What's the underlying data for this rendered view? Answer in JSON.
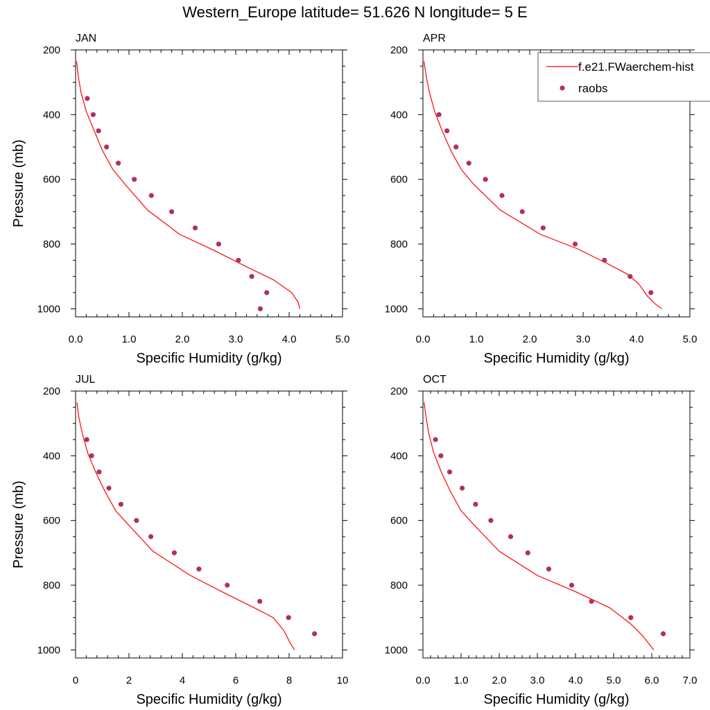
{
  "page_title": "Western_Europe  latitude= 51.626 N longitude= 5 E",
  "colors": {
    "model_line": "#ff0000",
    "obs_marker": "#b03060",
    "axis": "#000000"
  },
  "chart_data": [
    {
      "type": "line",
      "title": "JAN",
      "xlabel": "Specific Humidity (g/kg)",
      "ylabel": "Pressure (mb)",
      "xlim": [
        0,
        5
      ],
      "ylim": [
        200,
        1025
      ],
      "y_reversed": true,
      "xticks": [
        "0.0",
        "1.0",
        "2.0",
        "3.0",
        "4.0",
        "5.0"
      ],
      "yticks": [
        "200",
        "400",
        "600",
        "800",
        "1000"
      ],
      "legend": null,
      "series": [
        {
          "name": "f.e21.FWaerchem-hist",
          "kind": "line",
          "points": [
            [
              0.02,
              235
            ],
            [
              0.05,
              280
            ],
            [
              0.1,
              330
            ],
            [
              0.2,
              390
            ],
            [
              0.35,
              450
            ],
            [
              0.5,
              510
            ],
            [
              0.7,
              570
            ],
            [
              0.95,
              620
            ],
            [
              1.35,
              695
            ],
            [
              1.95,
              770
            ],
            [
              2.6,
              820
            ],
            [
              3.2,
              870
            ],
            [
              3.7,
              910
            ],
            [
              4.05,
              950
            ],
            [
              4.17,
              980
            ],
            [
              4.2,
              1000
            ]
          ]
        },
        {
          "name": "raobs",
          "kind": "scatter",
          "points": [
            [
              0.22,
              350
            ],
            [
              0.33,
              400
            ],
            [
              0.43,
              450
            ],
            [
              0.58,
              500
            ],
            [
              0.8,
              550
            ],
            [
              1.1,
              600
            ],
            [
              1.42,
              650
            ],
            [
              1.8,
              700
            ],
            [
              2.24,
              750
            ],
            [
              2.68,
              800
            ],
            [
              3.05,
              850
            ],
            [
              3.3,
              900
            ],
            [
              3.58,
              950
            ],
            [
              3.46,
              1000
            ]
          ]
        }
      ]
    },
    {
      "type": "line",
      "title": "APR",
      "xlabel": "Specific Humidity (g/kg)",
      "ylabel": "",
      "xlim": [
        0,
        5
      ],
      "ylim": [
        200,
        1025
      ],
      "y_reversed": true,
      "xticks": [
        "0.0",
        "1.0",
        "2.0",
        "3.0",
        "4.0",
        "5.0"
      ],
      "yticks": [
        "200",
        "400",
        "600",
        "800",
        "1000"
      ],
      "legend": {
        "placement": "top-right",
        "entries": [
          "f.e21.FWaerchem-hist",
          "raobs"
        ]
      },
      "series": [
        {
          "name": "f.e21.FWaerchem-hist",
          "kind": "line",
          "points": [
            [
              0.02,
              235
            ],
            [
              0.06,
              280
            ],
            [
              0.12,
              330
            ],
            [
              0.22,
              390
            ],
            [
              0.36,
              450
            ],
            [
              0.52,
              510
            ],
            [
              0.72,
              570
            ],
            [
              0.95,
              615
            ],
            [
              1.45,
              695
            ],
            [
              2.2,
              770
            ],
            [
              2.9,
              815
            ],
            [
              3.45,
              860
            ],
            [
              3.85,
              895
            ],
            [
              4.05,
              925
            ],
            [
              4.2,
              960
            ],
            [
              4.35,
              985
            ],
            [
              4.47,
              1000
            ]
          ]
        },
        {
          "name": "raobs",
          "kind": "scatter",
          "points": [
            [
              0.3,
              400
            ],
            [
              0.45,
              450
            ],
            [
              0.62,
              500
            ],
            [
              0.86,
              550
            ],
            [
              1.17,
              600
            ],
            [
              1.48,
              650
            ],
            [
              1.86,
              700
            ],
            [
              2.25,
              750
            ],
            [
              2.85,
              800
            ],
            [
              3.4,
              850
            ],
            [
              3.88,
              900
            ],
            [
              4.27,
              950
            ]
          ]
        }
      ]
    },
    {
      "type": "line",
      "title": "JUL",
      "xlabel": "Specific Humidity (g/kg)",
      "ylabel": "Pressure (mb)",
      "xlim": [
        0,
        10
      ],
      "ylim": [
        200,
        1025
      ],
      "y_reversed": true,
      "xticks": [
        "0",
        "2",
        "4",
        "6",
        "8",
        "10"
      ],
      "yticks": [
        "200",
        "400",
        "600",
        "800",
        "1000"
      ],
      "legend": null,
      "series": [
        {
          "name": "f.e21.FWaerchem-hist",
          "kind": "line",
          "points": [
            [
              0.05,
              235
            ],
            [
              0.12,
              280
            ],
            [
              0.25,
              330
            ],
            [
              0.45,
              390
            ],
            [
              0.75,
              450
            ],
            [
              1.1,
              510
            ],
            [
              1.5,
              570
            ],
            [
              2.0,
              615
            ],
            [
              2.9,
              695
            ],
            [
              4.3,
              770
            ],
            [
              5.6,
              825
            ],
            [
              6.7,
              870
            ],
            [
              7.4,
              900
            ],
            [
              7.8,
              940
            ],
            [
              8.05,
              980
            ],
            [
              8.2,
              1000
            ]
          ]
        },
        {
          "name": "raobs",
          "kind": "scatter",
          "points": [
            [
              0.42,
              350
            ],
            [
              0.6,
              400
            ],
            [
              0.88,
              450
            ],
            [
              1.25,
              500
            ],
            [
              1.7,
              550
            ],
            [
              2.28,
              600
            ],
            [
              2.82,
              650
            ],
            [
              3.7,
              700
            ],
            [
              4.62,
              750
            ],
            [
              5.68,
              800
            ],
            [
              6.9,
              850
            ],
            [
              7.98,
              900
            ],
            [
              8.95,
              950
            ]
          ]
        }
      ]
    },
    {
      "type": "line",
      "title": "OCT",
      "xlabel": "Specific Humidity (g/kg)",
      "ylabel": "",
      "xlim": [
        0,
        7
      ],
      "ylim": [
        200,
        1025
      ],
      "y_reversed": true,
      "xticks": [
        "0.0",
        "1.0",
        "2.0",
        "3.0",
        "4.0",
        "5.0",
        "6.0",
        "7.0"
      ],
      "yticks": [
        "200",
        "400",
        "600",
        "800",
        "1000"
      ],
      "legend": null,
      "series": [
        {
          "name": "f.e21.FWaerchem-hist",
          "kind": "line",
          "points": [
            [
              0.03,
              235
            ],
            [
              0.08,
              280
            ],
            [
              0.15,
              330
            ],
            [
              0.28,
              390
            ],
            [
              0.48,
              450
            ],
            [
              0.72,
              510
            ],
            [
              1.0,
              570
            ],
            [
              1.35,
              615
            ],
            [
              2.0,
              695
            ],
            [
              3.0,
              770
            ],
            [
              4.0,
              820
            ],
            [
              4.9,
              870
            ],
            [
              5.45,
              920
            ],
            [
              5.75,
              955
            ],
            [
              5.95,
              985
            ],
            [
              6.05,
              1000
            ]
          ]
        },
        {
          "name": "raobs",
          "kind": "scatter",
          "points": [
            [
              0.33,
              350
            ],
            [
              0.47,
              400
            ],
            [
              0.7,
              450
            ],
            [
              1.03,
              500
            ],
            [
              1.38,
              550
            ],
            [
              1.78,
              600
            ],
            [
              2.3,
              650
            ],
            [
              2.75,
              700
            ],
            [
              3.3,
              750
            ],
            [
              3.9,
              800
            ],
            [
              4.42,
              850
            ],
            [
              5.45,
              900
            ],
            [
              6.3,
              950
            ]
          ]
        }
      ]
    }
  ]
}
